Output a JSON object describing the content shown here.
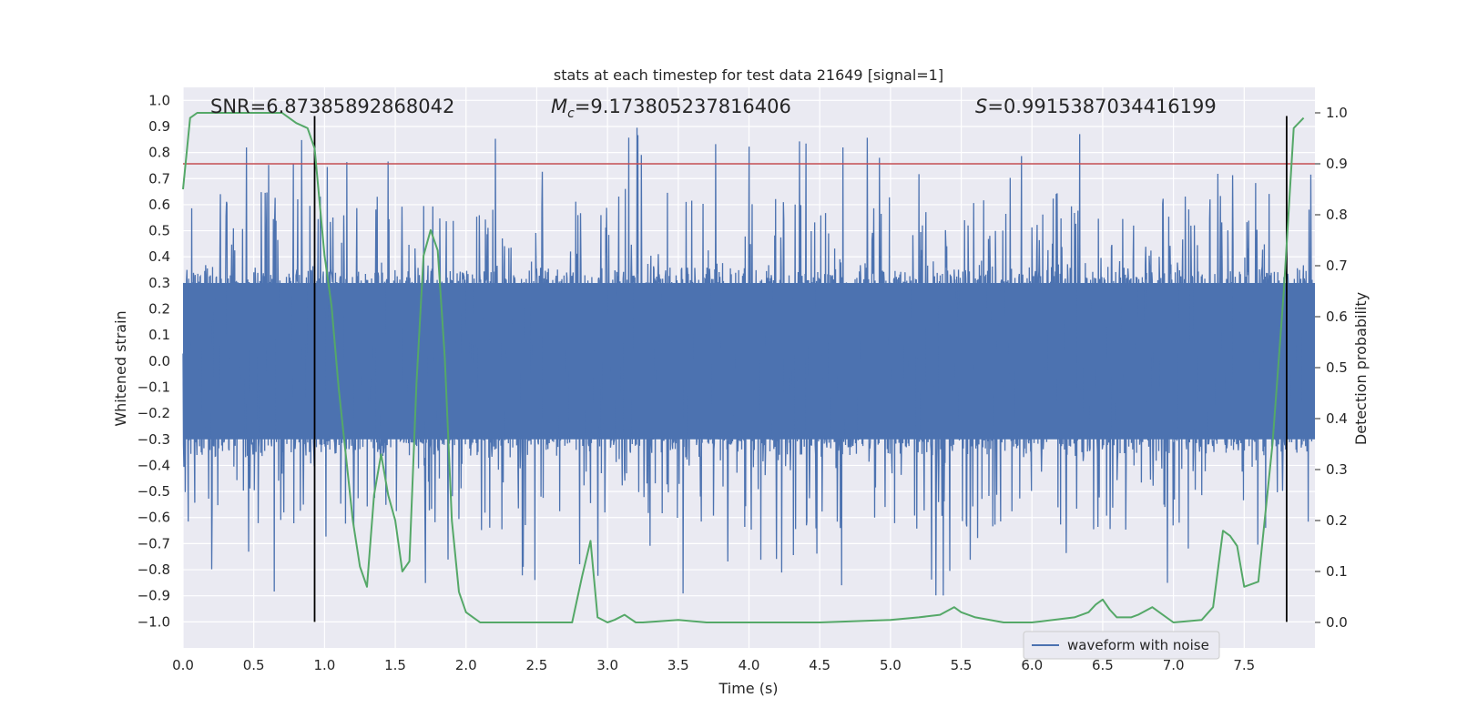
{
  "chart_data": {
    "type": "line",
    "title": "stats at each timestep for test data 21649 [signal=1]",
    "xlabel": "Time (s)",
    "ylabel_left": "Whitened strain",
    "ylabel_right": "Detection probability",
    "xlim": [
      0.0,
      8.0
    ],
    "ylim_left": [
      -1.1,
      1.05
    ],
    "ylim_right": [
      -0.05,
      1.05
    ],
    "grid": true,
    "x_ticks": [
      0.0,
      0.5,
      1.0,
      1.5,
      2.0,
      2.5,
      3.0,
      3.5,
      4.0,
      4.5,
      5.0,
      5.5,
      6.0,
      6.5,
      7.0,
      7.5
    ],
    "x_tick_labels": [
      "0.0",
      "0.5",
      "1.0",
      "1.5",
      "2.0",
      "2.5",
      "3.0",
      "3.5",
      "4.0",
      "4.5",
      "5.0",
      "5.5",
      "6.0",
      "6.5",
      "7.0",
      "7.5"
    ],
    "y_left_ticks": [
      1.0,
      0.9,
      0.8,
      0.7,
      0.6,
      0.5,
      0.4,
      0.3,
      0.2,
      0.1,
      0.0,
      -0.1,
      -0.2,
      -0.3,
      -0.4,
      -0.5,
      -0.6,
      -0.7,
      -0.8,
      -0.9,
      -1.0
    ],
    "y_left_tick_labels": [
      "1.0",
      "0.9",
      "0.8",
      "0.7",
      "0.6",
      "0.5",
      "0.4",
      "0.3",
      "0.2",
      "0.1",
      "0.0",
      "−0.1",
      "−0.2",
      "−0.3",
      "−0.4",
      "−0.5",
      "−0.6",
      "−0.7",
      "−0.8",
      "−0.9",
      "−1.0"
    ],
    "y_right_ticks": [
      1.0,
      0.9,
      0.8,
      0.7,
      0.6,
      0.5,
      0.4,
      0.3,
      0.2,
      0.1,
      0.0
    ],
    "y_right_tick_labels": [
      "1.0",
      "0.9",
      "0.8",
      "0.7",
      "0.6",
      "0.5",
      "0.4",
      "0.3",
      "0.2",
      "0.1",
      "0.0"
    ],
    "annotations": {
      "snr": "SNR=6.87385892868042",
      "mc_symbol": "M",
      "mc_sub": "c",
      "mc_value": "=9.173805237816406",
      "s_symbol": "S",
      "s_value": "=0.9915387034416199"
    },
    "threshold": {
      "axis": "right",
      "value": 0.9,
      "color": "#c44e52"
    },
    "vertical_markers": {
      "x": [
        0.93,
        7.8
      ],
      "ymin": -1.0,
      "ymax": 0.94,
      "color": "#000000"
    },
    "series": [
      {
        "name": "waveform with noise",
        "axis": "left",
        "color": "#4c72b0",
        "style": "dense_noise",
        "core_amplitude": 0.3,
        "peak_amplitude": 1.0
      },
      {
        "name": "detection probability",
        "axis": "right",
        "color": "#55a868",
        "x": [
          0.0,
          0.05,
          0.1,
          0.2,
          0.3,
          0.4,
          0.5,
          0.6,
          0.7,
          0.8,
          0.88,
          0.93,
          1.0,
          1.05,
          1.1,
          1.15,
          1.2,
          1.25,
          1.3,
          1.35,
          1.4,
          1.45,
          1.5,
          1.55,
          1.6,
          1.65,
          1.7,
          1.75,
          1.8,
          1.85,
          1.9,
          1.95,
          2.0,
          2.05,
          2.1,
          2.2,
          2.4,
          2.6,
          2.75,
          2.82,
          2.88,
          2.93,
          3.0,
          3.05,
          3.12,
          3.2,
          3.25,
          3.5,
          3.7,
          4.0,
          4.5,
          5.0,
          5.2,
          5.35,
          5.45,
          5.5,
          5.6,
          5.8,
          6.0,
          6.3,
          6.4,
          6.45,
          6.5,
          6.55,
          6.6,
          6.7,
          6.75,
          6.85,
          6.9,
          7.0,
          7.2,
          7.28,
          7.35,
          7.4,
          7.45,
          7.5,
          7.6,
          7.7,
          7.78,
          7.85,
          7.92
        ],
        "values": [
          0.85,
          0.99,
          1.0,
          1.0,
          1.0,
          1.0,
          1.0,
          1.0,
          1.0,
          0.98,
          0.97,
          0.93,
          0.72,
          0.62,
          0.46,
          0.33,
          0.2,
          0.11,
          0.07,
          0.25,
          0.33,
          0.25,
          0.2,
          0.1,
          0.12,
          0.47,
          0.72,
          0.77,
          0.73,
          0.52,
          0.2,
          0.06,
          0.02,
          0.01,
          0.0,
          0.0,
          0.0,
          0.0,
          0.0,
          0.09,
          0.16,
          0.01,
          0.0,
          0.005,
          0.015,
          0.0,
          0.0,
          0.005,
          0.0,
          0.0,
          0.0,
          0.005,
          0.01,
          0.015,
          0.03,
          0.02,
          0.01,
          0.0,
          0.0,
          0.01,
          0.02,
          0.035,
          0.045,
          0.025,
          0.01,
          0.01,
          0.015,
          0.03,
          0.02,
          0.0,
          0.005,
          0.03,
          0.18,
          0.17,
          0.15,
          0.07,
          0.08,
          0.35,
          0.65,
          0.97,
          0.99
        ]
      }
    ],
    "legend": {
      "label": "waveform with noise",
      "placement": "lower-right"
    }
  }
}
